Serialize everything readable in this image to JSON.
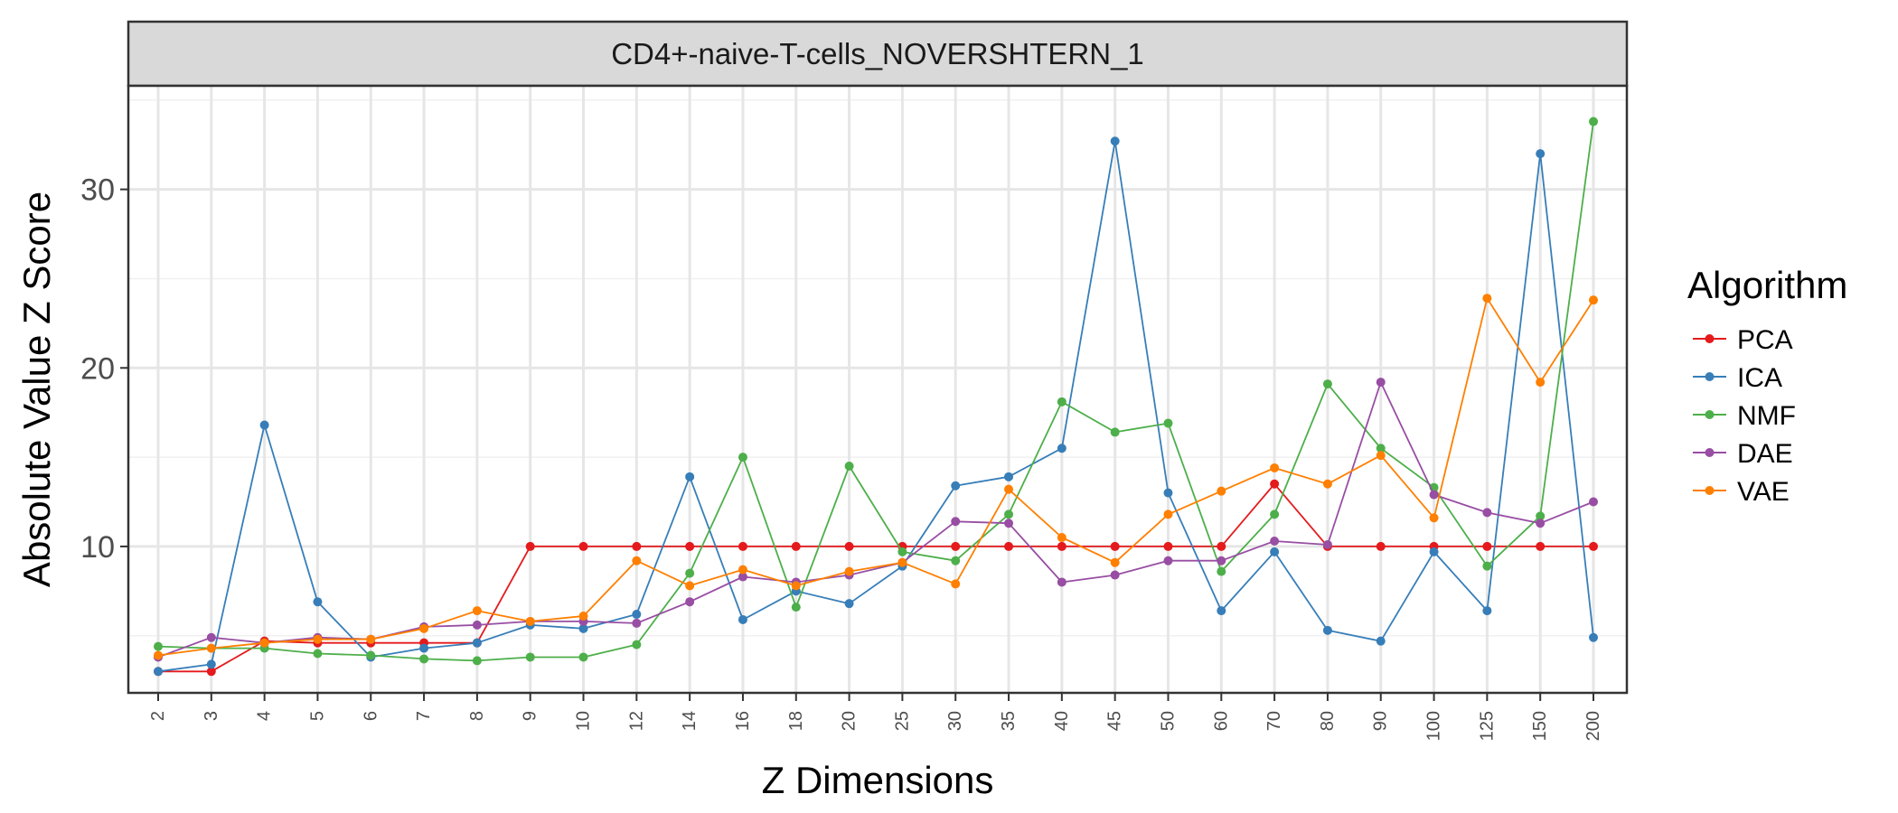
{
  "chart_data": {
    "type": "line",
    "title": "CD4+-naive-T-cells_NOVERSHTERN_1",
    "xlabel": "Z Dimensions",
    "ylabel": "Absolute Value Z Score",
    "categories": [
      "2",
      "3",
      "4",
      "5",
      "6",
      "7",
      "8",
      "9",
      "10",
      "12",
      "14",
      "16",
      "18",
      "20",
      "25",
      "30",
      "35",
      "40",
      "45",
      "50",
      "60",
      "70",
      "80",
      "90",
      "100",
      "125",
      "150",
      "200"
    ],
    "yticks": [
      10,
      20,
      30
    ],
    "ylim": [
      1.8,
      35.8
    ],
    "grid": true,
    "legend": {
      "title": "Algorithm",
      "position": "right"
    },
    "series": [
      {
        "name": "PCA",
        "color": "#E41A1C",
        "values": [
          3.0,
          3.0,
          4.7,
          4.6,
          4.6,
          4.6,
          4.6,
          10.0,
          10.0,
          10.0,
          10.0,
          10.0,
          10.0,
          10.0,
          10.0,
          10.0,
          10.0,
          10.0,
          10.0,
          10.0,
          10.0,
          13.5,
          10.0,
          10.0,
          10.0,
          10.0,
          10.0,
          10.0
        ]
      },
      {
        "name": "ICA",
        "color": "#377EB8",
        "values": [
          3.0,
          3.4,
          16.8,
          6.9,
          3.8,
          4.3,
          4.6,
          5.6,
          5.4,
          6.2,
          13.9,
          5.9,
          7.5,
          6.8,
          8.9,
          13.4,
          13.9,
          15.5,
          32.7,
          13.0,
          6.4,
          9.7,
          5.3,
          4.7,
          9.7,
          6.4,
          32.0,
          4.9
        ]
      },
      {
        "name": "NMF",
        "color": "#4DAF4A",
        "values": [
          4.4,
          4.3,
          4.3,
          4.0,
          3.9,
          3.7,
          3.6,
          3.8,
          3.8,
          4.5,
          8.5,
          15.0,
          6.6,
          14.5,
          9.7,
          9.2,
          11.8,
          18.1,
          16.4,
          16.9,
          8.6,
          11.8,
          19.1,
          15.5,
          13.3,
          8.9,
          11.7,
          33.8
        ]
      },
      {
        "name": "DAE",
        "color": "#984EA3",
        "values": [
          3.8,
          4.9,
          4.6,
          4.9,
          4.8,
          5.5,
          5.6,
          5.8,
          5.8,
          5.7,
          6.9,
          8.3,
          8.0,
          8.4,
          9.1,
          11.4,
          11.3,
          8.0,
          8.4,
          9.2,
          9.2,
          10.3,
          10.1,
          19.2,
          12.9,
          11.9,
          11.3,
          12.5
        ]
      },
      {
        "name": "VAE",
        "color": "#FF7F00",
        "values": [
          3.9,
          4.3,
          4.6,
          4.8,
          4.8,
          5.4,
          6.4,
          5.8,
          6.1,
          9.2,
          7.8,
          8.7,
          7.8,
          8.6,
          9.1,
          7.9,
          13.2,
          10.5,
          9.1,
          11.8,
          13.1,
          14.4,
          13.5,
          15.1,
          11.6,
          23.9,
          19.2,
          23.8
        ]
      }
    ]
  }
}
